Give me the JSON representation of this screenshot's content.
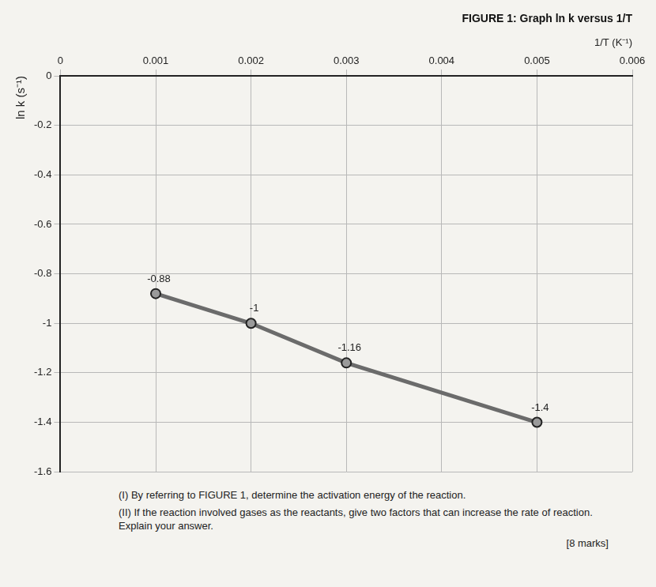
{
  "chart_data": {
    "type": "line",
    "title": "FIGURE 1: Graph ln k versus 1/T",
    "x_label": "1/T (K⁻¹)",
    "y_label": "ln k (s⁻¹)",
    "x": [
      0.001,
      0.002,
      0.003,
      0.005
    ],
    "values": [
      -0.88,
      -1,
      -1.16,
      -1.4
    ],
    "color": "#6b6b6b",
    "marker": "circle",
    "line_style": "solid",
    "data_labels": true,
    "xlim": [
      0,
      0.006
    ],
    "xticks": [
      0,
      0.001,
      0.002,
      0.003,
      0.004,
      0.005,
      0.006
    ],
    "ylim": [
      -1.6,
      0
    ],
    "yticks": [
      -1.6,
      -1.4,
      -1.2,
      -1,
      -0.8,
      -0.6,
      -0.4,
      -0.2,
      0
    ],
    "grid": true,
    "annotations": [
      "(I) By referring to FIGURE 1, determine the activation energy of the reaction.",
      "(II) If the reaction involved gases as the reactants, give two factors that can increase the rate of reaction. Explain your answer.",
      "[8 marks]"
    ]
  }
}
